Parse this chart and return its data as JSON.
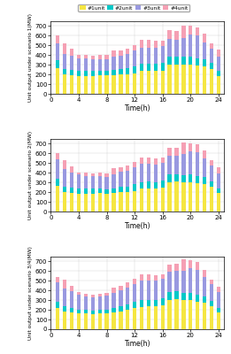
{
  "hours": [
    1,
    2,
    3,
    4,
    5,
    6,
    7,
    8,
    9,
    10,
    11,
    12,
    13,
    14,
    15,
    16,
    17,
    18,
    19,
    20,
    21,
    22,
    23,
    24
  ],
  "colors": [
    "#f5e642",
    "#00c8c8",
    "#9999e0",
    "#f5a0b4"
  ],
  "legend_labels": [
    "#1unit",
    "#2unit",
    "#3unit",
    "#4unit"
  ],
  "scenario1": {
    "ylabel": "Unit output under scenario 1(MW)",
    "unit1": [
      270,
      200,
      190,
      185,
      185,
      185,
      195,
      190,
      195,
      200,
      205,
      215,
      235,
      240,
      235,
      240,
      305,
      305,
      305,
      305,
      290,
      285,
      260,
      185
    ],
    "unit2": [
      80,
      60,
      55,
      50,
      50,
      50,
      45,
      45,
      50,
      55,
      60,
      70,
      75,
      75,
      75,
      80,
      80,
      80,
      75,
      80,
      80,
      75,
      60,
      55
    ],
    "unit3": [
      175,
      155,
      145,
      135,
      130,
      125,
      120,
      125,
      135,
      140,
      150,
      165,
      165,
      165,
      165,
      175,
      185,
      175,
      200,
      230,
      230,
      175,
      150,
      140
    ],
    "unit4": [
      75,
      110,
      75,
      35,
      35,
      35,
      45,
      45,
      65,
      55,
      55,
      55,
      80,
      75,
      75,
      55,
      90,
      90,
      125,
      90,
      90,
      90,
      55,
      75
    ]
  },
  "scenario2": {
    "ylabel": "Unit output under scenario 2(MW)",
    "unit1": [
      265,
      205,
      195,
      185,
      185,
      185,
      190,
      185,
      190,
      200,
      205,
      215,
      235,
      240,
      235,
      245,
      305,
      310,
      305,
      305,
      290,
      285,
      260,
      190
    ],
    "unit2": [
      75,
      55,
      50,
      50,
      50,
      50,
      45,
      40,
      50,
      55,
      55,
      65,
      70,
      70,
      70,
      75,
      75,
      75,
      70,
      75,
      75,
      70,
      55,
      50
    ],
    "unit3": [
      195,
      175,
      160,
      145,
      135,
      130,
      130,
      130,
      145,
      155,
      165,
      180,
      185,
      185,
      180,
      185,
      200,
      195,
      215,
      245,
      245,
      195,
      165,
      155
    ],
    "unit4": [
      65,
      95,
      60,
      25,
      30,
      30,
      35,
      35,
      60,
      50,
      55,
      55,
      70,
      65,
      65,
      50,
      80,
      80,
      120,
      80,
      85,
      80,
      50,
      65
    ]
  },
  "scenario3": {
    "ylabel": "Unit output under scenario 3/4(MW)",
    "unit1": [
      220,
      185,
      175,
      165,
      160,
      155,
      160,
      165,
      175,
      185,
      200,
      215,
      230,
      235,
      235,
      245,
      300,
      310,
      300,
      300,
      280,
      270,
      240,
      175
    ],
    "unit2": [
      65,
      50,
      45,
      40,
      40,
      40,
      40,
      40,
      45,
      50,
      55,
      65,
      70,
      70,
      70,
      75,
      80,
      80,
      75,
      75,
      75,
      70,
      55,
      45
    ],
    "unit3": [
      195,
      185,
      170,
      155,
      140,
      130,
      135,
      140,
      155,
      165,
      175,
      190,
      200,
      200,
      195,
      200,
      215,
      210,
      230,
      260,
      255,
      200,
      175,
      160
    ],
    "unit4": [
      60,
      90,
      55,
      20,
      25,
      30,
      30,
      30,
      55,
      50,
      50,
      55,
      65,
      65,
      60,
      50,
      75,
      75,
      120,
      75,
      80,
      75,
      45,
      55
    ]
  },
  "ylim": [
    0,
    750
  ],
  "yticks": [
    0,
    100,
    200,
    300,
    400,
    500,
    600,
    700
  ],
  "xticks": [
    0,
    4,
    8,
    12,
    16,
    20,
    24
  ],
  "xlabel": "Time(h)",
  "xlim": [
    0.0,
    24.8
  ],
  "bar_width": 0.55
}
